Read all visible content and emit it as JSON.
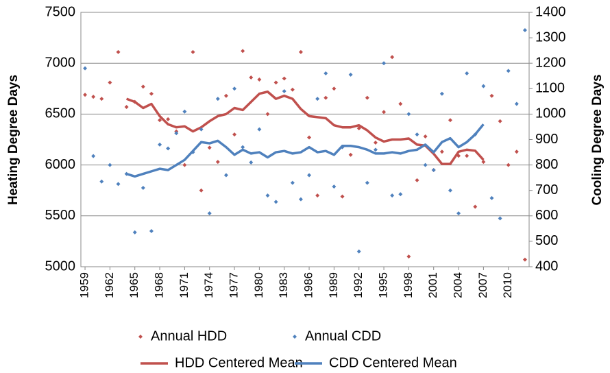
{
  "chart_data": {
    "type": "line",
    "y_label": "Heating Degree Days",
    "y2_label": "Cooling Degree Days",
    "x": [
      1959,
      1960,
      1961,
      1962,
      1963,
      1964,
      1965,
      1966,
      1967,
      1968,
      1969,
      1970,
      1971,
      1972,
      1973,
      1974,
      1975,
      1976,
      1977,
      1978,
      1979,
      1980,
      1981,
      1982,
      1983,
      1984,
      1985,
      1986,
      1987,
      1988,
      1989,
      1990,
      1991,
      1992,
      1993,
      1994,
      1995,
      1996,
      1997,
      1998,
      1999,
      2000,
      2001,
      2002,
      2003,
      2004,
      2005,
      2006,
      2007,
      2008,
      2009,
      2010,
      2011,
      2012
    ],
    "xlim": [
      1958.5,
      2012.5
    ],
    "xticks": [
      1959,
      1962,
      1965,
      1968,
      1971,
      1974,
      1977,
      1980,
      1983,
      1986,
      1989,
      1992,
      1995,
      1998,
      2001,
      2004,
      2007,
      2010
    ],
    "ylim": [
      5000,
      7500
    ],
    "yticks": [
      5000,
      5500,
      6000,
      6500,
      7000,
      7500
    ],
    "y2lim": [
      400,
      1400
    ],
    "y2ticks": [
      400,
      500,
      600,
      700,
      800,
      900,
      1000,
      1100,
      1200,
      1300,
      1400
    ],
    "grid": true,
    "series": [
      {
        "name": "Annual HDD",
        "color": "#c0504d",
        "mode": "markers",
        "values": [
          6690,
          6670,
          6650,
          6810,
          7110,
          6570,
          6620,
          6770,
          6700,
          6440,
          6450,
          6330,
          6000,
          7110,
          5750,
          6170,
          6030,
          6680,
          6300,
          7120,
          6860,
          6840,
          6500,
          6810,
          6850,
          6740,
          7110,
          6270,
          5700,
          6660,
          6750,
          5690,
          6100,
          6360,
          6660,
          6220,
          6520,
          7060,
          6600,
          5100,
          5850,
          6280,
          5950,
          6130,
          6440,
          6090,
          6090,
          5590,
          6030,
          6680,
          6430,
          6000,
          6130,
          5070
        ]
      },
      {
        "name": "HDD Centered Mean",
        "color": "#c0504d",
        "mode": "line",
        "values": [
          null,
          null,
          null,
          null,
          null,
          6650,
          6620,
          6560,
          6600,
          6480,
          6400,
          6370,
          6380,
          6330,
          6370,
          6430,
          6480,
          6500,
          6560,
          6540,
          6620,
          6700,
          6720,
          6650,
          6680,
          6650,
          6550,
          6480,
          6470,
          6460,
          6390,
          6370,
          6370,
          6390,
          6340,
          6270,
          6230,
          6250,
          6250,
          6260,
          6200,
          6190,
          6110,
          6010,
          6010,
          6130,
          6150,
          6140,
          6050,
          null,
          null,
          null,
          null,
          null
        ]
      },
      {
        "name": "Annual CDD",
        "color": "#4f81bd",
        "mode": "markers",
        "axis": "y2",
        "values": [
          1180,
          835,
          735,
          800,
          725,
          765,
          535,
          710,
          540,
          880,
          865,
          925,
          1010,
          850,
          940,
          610,
          1060,
          760,
          1100,
          870,
          810,
          940,
          680,
          655,
          1090,
          730,
          665,
          760,
          1060,
          1160,
          715,
          870,
          1155,
          460,
          730,
          860,
          1200,
          680,
          685,
          1000,
          920,
          800,
          780,
          1080,
          700,
          610,
          1160,
          920,
          1110,
          670,
          590,
          1170,
          1040,
          1330
        ]
      },
      {
        "name": "CDD Centered Mean",
        "color": "#4f81bd",
        "mode": "line",
        "axis": "y2",
        "values": [
          null,
          null,
          null,
          null,
          null,
          765,
          755,
          765,
          775,
          785,
          780,
          800,
          820,
          855,
          890,
          885,
          895,
          870,
          840,
          860,
          845,
          850,
          830,
          850,
          855,
          845,
          850,
          870,
          850,
          855,
          840,
          875,
          875,
          870,
          860,
          845,
          845,
          850,
          845,
          855,
          860,
          880,
          850,
          890,
          905,
          870,
          890,
          920,
          960,
          null,
          null,
          null,
          null,
          null
        ]
      }
    ]
  }
}
